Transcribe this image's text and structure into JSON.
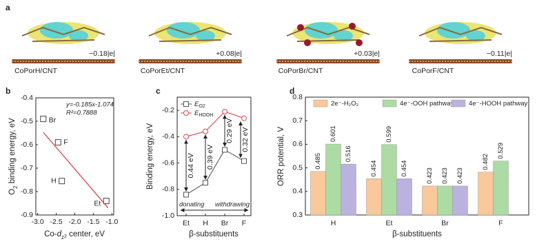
{
  "panel_labels": [
    "a",
    "b",
    "c",
    "d"
  ],
  "panel_a": [
    {
      "charge": "−0.18|e|",
      "label": "CoPorH/CNT"
    },
    {
      "charge": "+0.08|e|",
      "label": "CoPorEt/CNT"
    },
    {
      "charge": "+0.03|e|",
      "label": "CoPorBr/CNT"
    },
    {
      "charge": "−0.11|e|",
      "label": "CoPorF/CNT"
    }
  ],
  "chart_data": [
    {
      "type": "scatter",
      "xlabel_parts": [
        "Co-",
        "d",
        "z",
        "2",
        " center, eV"
      ],
      "ylabel_parts": [
        "O",
        "2",
        " binding energy, eV"
      ],
      "x": [
        -2.85,
        -2.45,
        -2.35,
        -1.15
      ],
      "values": [
        -0.49,
        -0.59,
        -0.755,
        -0.84
      ],
      "point_labels": [
        "Br",
        "F",
        "H",
        "Et"
      ],
      "fit": {
        "x": [
          -2.85,
          -1.1
        ],
        "values": [
          -0.547,
          -0.87
        ],
        "color": "#d9383e"
      },
      "annotations": [
        "y=-0.185x-1.074",
        "R²=0.7888"
      ],
      "xlim": [
        -3.05,
        -0.95
      ],
      "xticks": [
        {
          "value": -3,
          "label": "-3.0"
        },
        -2.5,
        {
          "value": -2,
          "label": "-2.0"
        },
        -1.5,
        {
          "value": -1,
          "label": "-1.0"
        }
      ],
      "ylim": [
        -0.9,
        -0.4
      ],
      "yticks": [
        -0.4,
        -0.5,
        -0.6,
        -0.7,
        -0.8,
        -0.9
      ]
    },
    {
      "type": "line",
      "xlabel": "β-substituents",
      "ylabel": "Binding energy, eV",
      "categories": [
        "Et",
        "H",
        "Br",
        "F"
      ],
      "series": [
        {
          "name": "E",
          "subscript": "O2",
          "color": "#555555",
          "marker": "square",
          "values": [
            -0.84,
            -0.75,
            -0.5,
            -0.585
          ]
        },
        {
          "name": "E",
          "subscript": "HOOH",
          "color": "#d9434f",
          "marker": "circle",
          "values": [
            -0.4,
            -0.36,
            -0.21,
            -0.26
          ]
        }
      ],
      "gap_labels": [
        "0.44 eV",
        "0.39 eV",
        "0.29 eV",
        "0.32 eV"
      ],
      "trend_labels": [
        "donating",
        "withdrawing"
      ],
      "ylim": [
        -1.0,
        -0.1
      ],
      "yticks": [
        {
          "value": -1,
          "label": "-1.0"
        },
        -0.8,
        -0.6,
        -0.4,
        -0.2
      ]
    },
    {
      "type": "bar",
      "xlabel": "β-substituents",
      "ylabel": "ORR potential, V",
      "categories": [
        "H",
        "Et",
        "Br",
        "F"
      ],
      "series": [
        {
          "name": "2e⁻-H₂O₂",
          "color": "#f9c89b",
          "values": [
            0.485,
            0.454,
            0.423,
            0.482
          ]
        },
        {
          "name": "4e⁻-OOH pathway",
          "color": "#acdca3",
          "values": [
            0.601,
            0.599,
            0.423,
            0.529
          ]
        },
        {
          "name": "4e⁻-HOOH pathway",
          "color": "#bcb2e0",
          "values": [
            0.516,
            0.454,
            0.423,
            null
          ]
        }
      ],
      "ylim": [
        0.3,
        0.8
      ],
      "yticks": [
        0.3,
        0.4,
        0.5,
        0.6,
        0.7,
        0.8
      ]
    }
  ]
}
